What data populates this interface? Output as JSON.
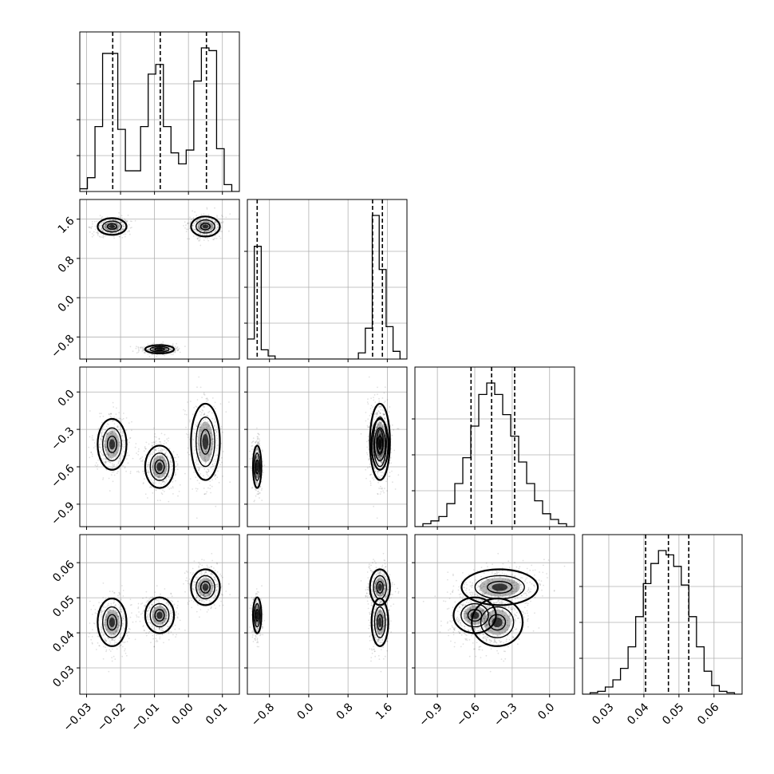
{
  "chart_data": {
    "type": "corner",
    "params": [
      {
        "xlim": [
          -0.032,
          0.015
        ],
        "ticks": [
          -0.03,
          -0.02,
          -0.01,
          0.0,
          0.01
        ],
        "tick_labels": [
          "−0.03",
          "−0.02",
          "−0.01",
          "0.00",
          "0.01"
        ],
        "quantiles": [
          -0.0223,
          -0.0083,
          0.0053
        ]
      },
      {
        "xlim": [
          -1.25,
          2.0
        ],
        "ticks": [
          -0.8,
          0.0,
          0.8,
          1.6
        ],
        "tick_labels": [
          "−0.8",
          "0.0",
          "0.8",
          "1.6"
        ],
        "quantiles": [
          -1.05,
          1.3,
          1.5
        ]
      },
      {
        "xlim": [
          -1.08,
          0.2
        ],
        "ticks": [
          -0.9,
          -0.6,
          -0.3,
          0.0
        ],
        "tick_labels": [
          "−0.9",
          "−0.6",
          "−0.3",
          "0.0"
        ],
        "quantiles": [
          -0.63,
          -0.465,
          -0.28
        ]
      },
      {
        "xlim": [
          0.0225,
          0.068
        ],
        "ticks": [
          0.03,
          0.04,
          0.05,
          0.06
        ],
        "tick_labels": [
          "0.03",
          "0.04",
          "0.05",
          "0.06"
        ],
        "quantiles": [
          0.0405,
          0.047,
          0.0528
        ]
      }
    ],
    "histograms": [
      [
        0.02,
        0.1,
        0.47,
        1.0,
        1.0,
        0.45,
        0.15,
        0.15,
        0.47,
        0.85,
        0.92,
        0.47,
        0.28,
        0.2,
        0.3,
        0.8,
        1.04,
        1.02,
        0.31,
        0.05,
        0.0
      ],
      [
        0.13,
        0.73,
        0.06,
        0.02,
        0.0,
        0.0,
        0.0,
        0.0,
        0.0,
        0.0,
        0.0,
        0.0,
        0.0,
        0.0,
        0.0,
        0.0,
        0.04,
        0.2,
        0.93,
        0.58,
        0.21,
        0.05,
        0.0
      ],
      [
        0.0,
        0.02,
        0.04,
        0.07,
        0.16,
        0.3,
        0.48,
        0.7,
        0.92,
        1.0,
        0.92,
        0.78,
        0.63,
        0.45,
        0.3,
        0.18,
        0.09,
        0.05,
        0.02,
        0.0
      ],
      [
        0.0,
        0.01,
        0.02,
        0.05,
        0.1,
        0.18,
        0.33,
        0.54,
        0.77,
        0.91,
        1.0,
        0.97,
        0.89,
        0.76,
        0.54,
        0.33,
        0.16,
        0.06,
        0.02,
        0.01,
        0.0
      ]
    ],
    "clusters": [
      {
        "means": [
          -0.0225,
          1.45,
          -0.42,
          0.043
        ],
        "sds": [
          0.0025,
          0.1,
          0.12,
          0.004
        ]
      },
      {
        "means": [
          -0.0085,
          -1.05,
          -0.6,
          0.045
        ],
        "sds": [
          0.0025,
          0.05,
          0.1,
          0.003
        ]
      },
      {
        "means": [
          0.005,
          1.45,
          -0.4,
          0.053
        ],
        "sds": [
          0.0025,
          0.12,
          0.18,
          0.003
        ]
      }
    ],
    "quantile_levels": [
      0.16,
      0.5,
      0.84
    ],
    "grid": true,
    "colors": {
      "line": "#000000",
      "grid": "#b0b0b0",
      "points": "#000000",
      "fill": "#000000"
    }
  }
}
